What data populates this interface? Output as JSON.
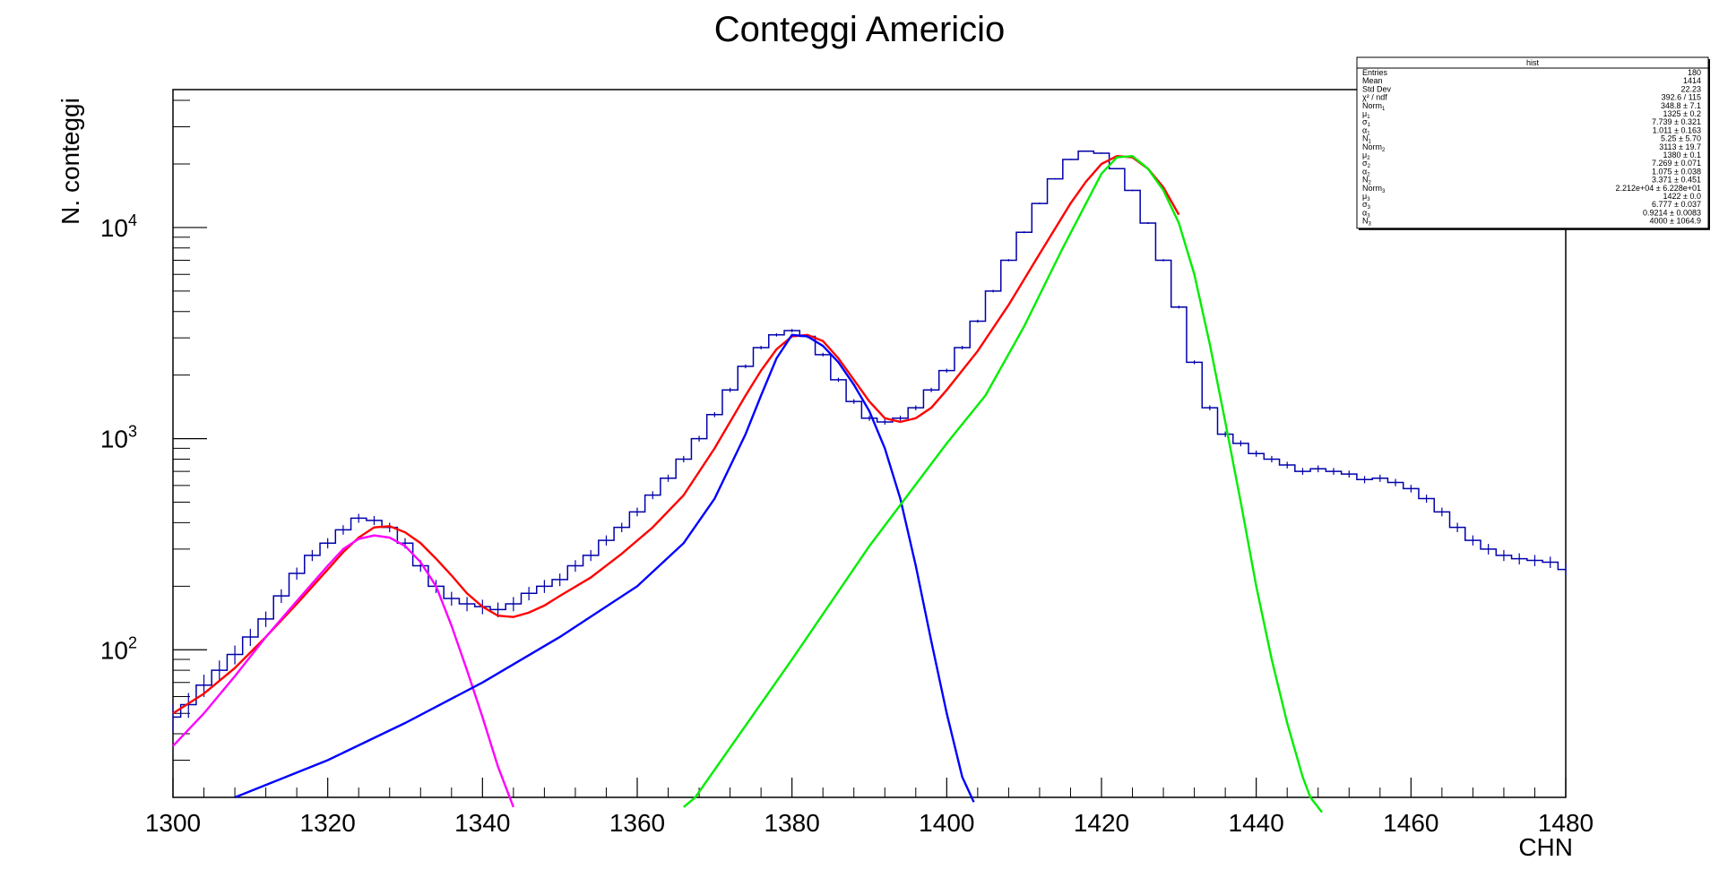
{
  "chart_data": {
    "type": "line",
    "title": "Conteggi Americio",
    "xlabel": "CHN",
    "ylabel": "N. conteggi",
    "xlim": [
      1300,
      1480
    ],
    "ylim": [
      20,
      45000
    ],
    "y_scale": "log",
    "x_ticks": [
      1300,
      1320,
      1340,
      1360,
      1380,
      1400,
      1420,
      1440,
      1460,
      1480
    ],
    "y_ticks": [
      {
        "value": 100,
        "base": "10",
        "exp": "2"
      },
      {
        "value": 1000,
        "base": "10",
        "exp": "3"
      },
      {
        "value": 10000,
        "base": "10",
        "exp": "4"
      }
    ],
    "grid": false,
    "series": [
      {
        "kind": "histogram",
        "color": "#0000aa",
        "x": [
          1300,
          1302,
          1304,
          1306,
          1308,
          1310,
          1312,
          1314,
          1316,
          1318,
          1320,
          1322,
          1324,
          1326,
          1328,
          1330,
          1332,
          1334,
          1336,
          1338,
          1340,
          1342,
          1344,
          1346,
          1348,
          1350,
          1352,
          1354,
          1356,
          1358,
          1360,
          1362,
          1364,
          1366,
          1368,
          1370,
          1372,
          1374,
          1376,
          1378,
          1380,
          1382,
          1384,
          1386,
          1388,
          1390,
          1392,
          1394,
          1396,
          1398,
          1400,
          1402,
          1404,
          1406,
          1408,
          1410,
          1412,
          1414,
          1416,
          1418,
          1420,
          1422,
          1424,
          1426,
          1428,
          1430,
          1432,
          1434,
          1436,
          1438,
          1440,
          1442,
          1444,
          1446,
          1448,
          1450,
          1452,
          1454,
          1456,
          1458,
          1460,
          1462,
          1464,
          1466,
          1468,
          1470,
          1472,
          1474,
          1476,
          1478,
          1480
        ],
        "y": [
          48,
          55,
          68,
          80,
          95,
          115,
          140,
          180,
          230,
          280,
          320,
          370,
          420,
          410,
          380,
          320,
          250,
          200,
          175,
          165,
          160,
          155,
          165,
          185,
          200,
          215,
          250,
          280,
          330,
          380,
          450,
          540,
          650,
          800,
          1000,
          1300,
          1700,
          2200,
          2700,
          3100,
          3250,
          3050,
          2500,
          1900,
          1500,
          1250,
          1200,
          1250,
          1400,
          1700,
          2100,
          2700,
          3600,
          5000,
          7000,
          9500,
          13000,
          17000,
          21000,
          23000,
          22500,
          19000,
          15000,
          10500,
          7000,
          4200,
          2300,
          1400,
          1050,
          950,
          850,
          800,
          750,
          700,
          720,
          700,
          680,
          640,
          650,
          620,
          580,
          520,
          450,
          380,
          330,
          300,
          280,
          270,
          265,
          260,
          240
        ]
      },
      {
        "kind": "fit_total",
        "color": "#ff0000",
        "x": [
          1300,
          1304,
          1308,
          1312,
          1316,
          1320,
          1322,
          1324,
          1326,
          1328,
          1330,
          1332,
          1334,
          1336,
          1338,
          1340,
          1342,
          1344,
          1346,
          1348,
          1350,
          1354,
          1358,
          1362,
          1366,
          1370,
          1374,
          1376,
          1378,
          1380,
          1382,
          1384,
          1386,
          1388,
          1390,
          1392,
          1394,
          1396,
          1398,
          1400,
          1404,
          1408,
          1412,
          1416,
          1418,
          1420,
          1422,
          1424,
          1426,
          1428,
          1430
        ],
        "y": [
          50,
          62,
          82,
          115,
          165,
          240,
          290,
          340,
          380,
          385,
          360,
          320,
          270,
          225,
          185,
          160,
          145,
          143,
          150,
          162,
          180,
          220,
          285,
          380,
          540,
          900,
          1600,
          2100,
          2650,
          3050,
          3100,
          2900,
          2400,
          1900,
          1500,
          1250,
          1200,
          1250,
          1400,
          1700,
          2600,
          4300,
          7500,
          13000,
          16500,
          20000,
          21800,
          21500,
          19000,
          15500,
          11500
        ]
      },
      {
        "kind": "peak_1",
        "color": "#ff00ff",
        "x": [
          1300,
          1304,
          1308,
          1312,
          1316,
          1320,
          1322,
          1324,
          1326,
          1328,
          1330,
          1332,
          1334,
          1336,
          1338,
          1340,
          1342,
          1344
        ],
        "y": [
          35,
          50,
          75,
          115,
          170,
          250,
          300,
          335,
          348,
          340,
          310,
          260,
          200,
          130,
          80,
          48,
          28,
          18
        ]
      },
      {
        "kind": "peak_2",
        "color": "#0000ff",
        "x": [
          1308,
          1320,
          1330,
          1340,
          1350,
          1360,
          1366,
          1370,
          1374,
          1376,
          1378,
          1380,
          1382,
          1384,
          1386,
          1388,
          1390,
          1392,
          1394,
          1396,
          1398,
          1400,
          1402,
          1403.5
        ],
        "y": [
          20,
          30,
          45,
          70,
          115,
          200,
          320,
          520,
          1050,
          1600,
          2400,
          3100,
          3050,
          2750,
          2300,
          1800,
          1350,
          900,
          520,
          250,
          110,
          50,
          25,
          19
        ]
      },
      {
        "kind": "peak_3",
        "color": "#00ee00",
        "x": [
          1366,
          1367.5,
          1380,
          1390,
          1400,
          1405,
          1410,
          1415,
          1418,
          1420,
          1422,
          1424,
          1426,
          1428,
          1430,
          1432,
          1434,
          1436,
          1438,
          1440,
          1442,
          1444,
          1446,
          1447,
          1448.5
        ],
        "y": [
          18,
          20,
          90,
          310,
          950,
          1600,
          3400,
          8000,
          13000,
          18000,
          21500,
          21800,
          19000,
          15000,
          10500,
          6000,
          2800,
          1200,
          500,
          200,
          90,
          45,
          25,
          20,
          17
        ]
      }
    ]
  },
  "stats_box": {
    "title": "hist",
    "rows": [
      {
        "label": "Entries",
        "sub": "",
        "value": "180"
      },
      {
        "label": "Mean",
        "sub": "",
        "value": "1414"
      },
      {
        "label": "Std Dev",
        "sub": "",
        "value": "22.23"
      },
      {
        "label": "χ² / ndf",
        "sub": "",
        "value": "392.6 / 115"
      },
      {
        "label": "Norm",
        "sub": "1",
        "value": "348.8 ± 7.1"
      },
      {
        "label": "μ",
        "sub": "1",
        "value": "1325 ± 0.2"
      },
      {
        "label": "σ",
        "sub": "1",
        "value": "7.739 ± 0.321"
      },
      {
        "label": "α",
        "sub": "1",
        "value": "1.011 ± 0.163"
      },
      {
        "label": "N",
        "sub": "1",
        "value": "5.25 ± 5.70"
      },
      {
        "label": "Norm",
        "sub": "2",
        "value": "3113 ± 19.7"
      },
      {
        "label": "μ",
        "sub": "2",
        "value": "1380 ± 0.1"
      },
      {
        "label": "σ",
        "sub": "2",
        "value": "7.269 ± 0.071"
      },
      {
        "label": "α",
        "sub": "2",
        "value": "1.075 ± 0.038"
      },
      {
        "label": "N",
        "sub": "2",
        "value": "3.371 ± 0.451"
      },
      {
        "label": "Norm",
        "sub": "3",
        "value": "2.212e+04 ± 6.228e+01"
      },
      {
        "label": "μ",
        "sub": "3",
        "value": "1422 ± 0.0"
      },
      {
        "label": "σ",
        "sub": "3",
        "value": "6.777 ± 0.037"
      },
      {
        "label": "α",
        "sub": "3",
        "value": "0.9214 ± 0.0083"
      },
      {
        "label": "N",
        "sub": "3",
        "value": "4000 ± 1064.9"
      }
    ]
  }
}
